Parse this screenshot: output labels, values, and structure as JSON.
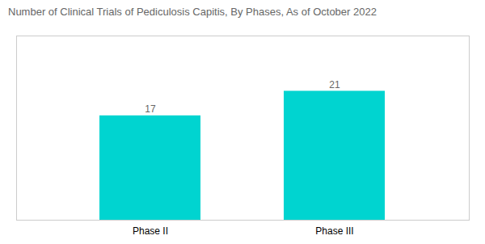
{
  "chart_data": {
    "type": "bar",
    "title": "Number of Clinical Trials of Pediculosis Capitis, By Phases, As of October 2022",
    "categories": [
      "Phase II",
      "Phase III"
    ],
    "values": [
      17,
      21
    ],
    "color": "#00D4D0",
    "ylim": [
      0,
      30
    ],
    "yticks": [],
    "grid": false,
    "data_labels": true,
    "tick_labels": "x"
  }
}
